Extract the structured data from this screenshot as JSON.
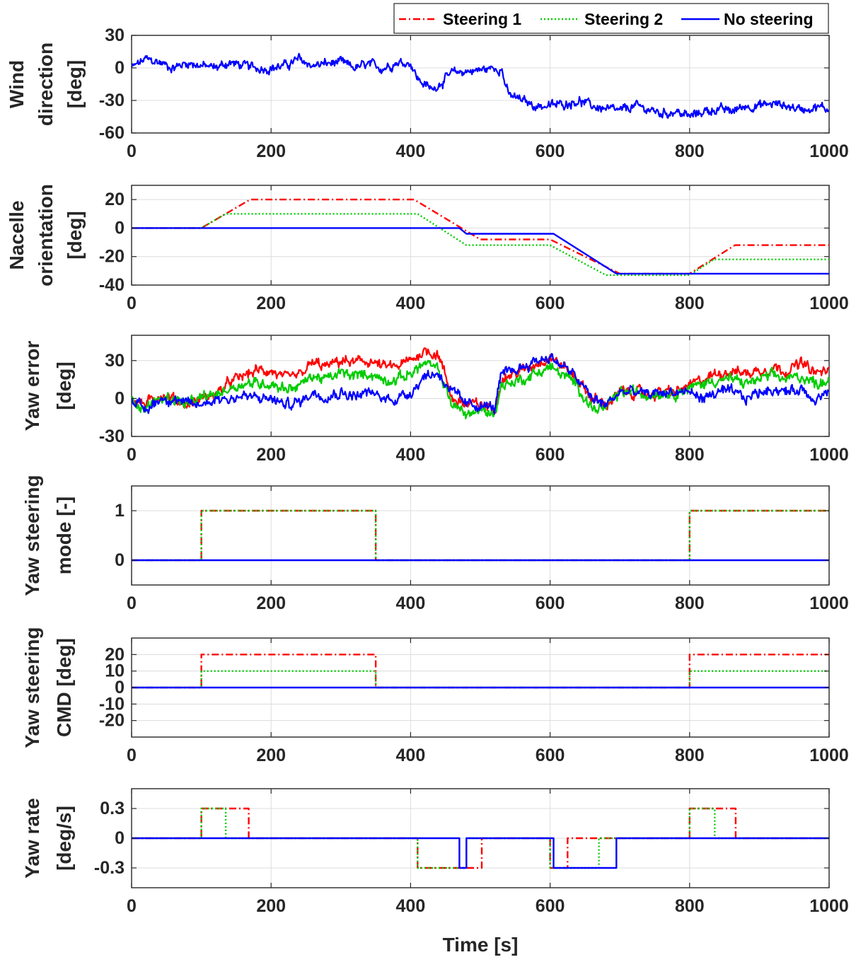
{
  "legend": {
    "items": [
      {
        "label": "Steering 1",
        "color": "#ff0000",
        "dash": "dashdot"
      },
      {
        "label": "Steering 2",
        "color": "#00cc00",
        "dash": "dotted"
      },
      {
        "label": "No steering",
        "color": "#0000ff",
        "dash": "solid"
      }
    ]
  },
  "xlabel": "Time [s]",
  "chart_data": [
    {
      "type": "line",
      "id": "wind",
      "ylabel": [
        "Wind",
        "direction",
        "[deg]"
      ],
      "xlim": [
        0,
        1000
      ],
      "ylim": [
        -60,
        30
      ],
      "xticks": [
        0,
        200,
        400,
        600,
        800,
        1000
      ],
      "yticks": [
        30,
        0,
        -30,
        -60
      ],
      "grid": true,
      "series": [
        {
          "name": "No steering",
          "color": "#0000ff",
          "dash": "solid",
          "noisy": true,
          "noise": 5,
          "x": [
            0,
            20,
            40,
            60,
            80,
            100,
            120,
            140,
            160,
            180,
            200,
            220,
            240,
            260,
            280,
            300,
            320,
            340,
            360,
            380,
            400,
            410,
            420,
            430,
            440,
            460,
            480,
            500,
            520,
            530,
            540,
            560,
            580,
            600,
            620,
            640,
            660,
            680,
            700,
            720,
            740,
            760,
            780,
            800,
            820,
            840,
            860,
            880,
            900,
            920,
            940,
            960,
            980,
            1000
          ],
          "y": [
            0,
            8,
            5,
            0,
            5,
            2,
            0,
            5,
            2,
            0,
            0,
            2,
            8,
            2,
            4,
            5,
            0,
            3,
            0,
            5,
            5,
            -10,
            -15,
            -20,
            -15,
            -5,
            -3,
            -2,
            0,
            0,
            -25,
            -30,
            -35,
            -35,
            -33,
            -30,
            -35,
            -38,
            -40,
            -35,
            -38,
            -42,
            -40,
            -45,
            -40,
            -38,
            -40,
            -35,
            -35,
            -33,
            -35,
            -38,
            -36,
            -38
          ]
        }
      ]
    },
    {
      "type": "line",
      "id": "nacelle",
      "ylabel": [
        "Nacelle",
        "orientation",
        "[deg]"
      ],
      "xlim": [
        0,
        1000
      ],
      "ylim": [
        -40,
        30
      ],
      "xticks": [
        0,
        200,
        400,
        600,
        800,
        1000
      ],
      "yticks": [
        20,
        0,
        -20,
        -40
      ],
      "grid": true,
      "series": [
        {
          "name": "Steering 1",
          "color": "#ff0000",
          "dash": "dashdot",
          "x": [
            0,
            100,
            170,
            405,
            500,
            600,
            700,
            800,
            865,
            1000
          ],
          "y": [
            0,
            0,
            20,
            20,
            -8,
            -8,
            -32,
            -32,
            -12,
            -12
          ]
        },
        {
          "name": "Steering 2",
          "color": "#00cc00",
          "dash": "dotted",
          "x": [
            0,
            100,
            135,
            410,
            480,
            600,
            680,
            800,
            835,
            1000
          ],
          "y": [
            0,
            0,
            10,
            10,
            -12,
            -12,
            -33,
            -33,
            -22,
            -22
          ]
        },
        {
          "name": "No steering",
          "color": "#0000ff",
          "dash": "solid",
          "x": [
            0,
            470,
            480,
            605,
            695,
            1000
          ],
          "y": [
            0,
            0,
            -4,
            -4,
            -32,
            -32
          ]
        }
      ]
    },
    {
      "type": "line",
      "id": "yawerr",
      "ylabel": [
        "Yaw error",
        "[deg]"
      ],
      "xlim": [
        0,
        1000
      ],
      "ylim": [
        -30,
        50
      ],
      "xticks": [
        0,
        200,
        400,
        600,
        800,
        1000
      ],
      "yticks": [
        30,
        0,
        -30
      ],
      "grid": true,
      "series": [
        {
          "name": "Steering 1",
          "color": "#ff0000",
          "dash": "solid",
          "noisy": true,
          "noise": 5,
          "x": [
            0,
            20,
            40,
            60,
            80,
            100,
            120,
            140,
            160,
            180,
            200,
            220,
            240,
            260,
            280,
            300,
            320,
            340,
            360,
            380,
            400,
            420,
            440,
            460,
            480,
            500,
            520,
            530,
            540,
            560,
            580,
            600,
            620,
            640,
            660,
            680,
            700,
            720,
            740,
            760,
            780,
            800,
            820,
            840,
            860,
            880,
            900,
            920,
            940,
            960,
            980,
            1000
          ],
          "y": [
            0,
            -5,
            3,
            0,
            -5,
            0,
            3,
            12,
            18,
            22,
            22,
            15,
            18,
            28,
            25,
            30,
            28,
            30,
            25,
            25,
            30,
            38,
            35,
            0,
            -5,
            -5,
            -8,
            15,
            18,
            22,
            28,
            33,
            25,
            15,
            0,
            -5,
            5,
            5,
            3,
            5,
            5,
            10,
            15,
            20,
            22,
            20,
            22,
            25,
            22,
            28,
            20,
            22
          ]
        },
        {
          "name": "Steering 2",
          "color": "#00cc00",
          "dash": "solid",
          "noisy": true,
          "noise": 5,
          "x": [
            0,
            20,
            40,
            60,
            80,
            100,
            120,
            140,
            160,
            180,
            200,
            220,
            240,
            260,
            280,
            300,
            320,
            340,
            360,
            380,
            400,
            420,
            440,
            460,
            480,
            500,
            520,
            530,
            540,
            560,
            580,
            600,
            620,
            640,
            660,
            680,
            700,
            720,
            740,
            760,
            780,
            800,
            820,
            840,
            860,
            880,
            900,
            920,
            940,
            960,
            980,
            1000
          ],
          "y": [
            0,
            -8,
            0,
            0,
            -5,
            0,
            3,
            8,
            12,
            12,
            12,
            8,
            10,
            18,
            15,
            20,
            18,
            20,
            15,
            15,
            20,
            28,
            22,
            -5,
            -12,
            -10,
            -12,
            10,
            12,
            15,
            20,
            25,
            18,
            10,
            -8,
            -8,
            5,
            5,
            3,
            5,
            5,
            8,
            12,
            15,
            15,
            12,
            15,
            18,
            15,
            18,
            12,
            15
          ]
        },
        {
          "name": "No steering",
          "color": "#0000ff",
          "dash": "solid",
          "noisy": true,
          "noise": 5,
          "x": [
            0,
            20,
            40,
            60,
            80,
            100,
            120,
            140,
            160,
            180,
            200,
            220,
            240,
            260,
            280,
            300,
            320,
            340,
            360,
            380,
            400,
            420,
            440,
            460,
            480,
            500,
            520,
            530,
            540,
            560,
            580,
            600,
            620,
            640,
            660,
            680,
            700,
            720,
            740,
            760,
            780,
            800,
            820,
            840,
            860,
            880,
            900,
            920,
            940,
            960,
            980,
            1000
          ],
          "y": [
            0,
            -10,
            0,
            0,
            -5,
            -5,
            0,
            0,
            2,
            0,
            0,
            -5,
            -3,
            5,
            2,
            5,
            2,
            5,
            0,
            0,
            5,
            18,
            20,
            5,
            -5,
            -5,
            -8,
            18,
            20,
            25,
            30,
            33,
            25,
            15,
            0,
            -5,
            5,
            5,
            3,
            5,
            5,
            5,
            0,
            5,
            5,
            0,
            5,
            8,
            5,
            8,
            0,
            5
          ]
        }
      ]
    },
    {
      "type": "line",
      "id": "mode",
      "ylabel": [
        "Yaw steering",
        "mode [-]"
      ],
      "xlim": [
        0,
        1000
      ],
      "ylim": [
        -0.5,
        1.5
      ],
      "xticks": [
        0,
        200,
        400,
        600,
        800,
        1000
      ],
      "yticks": [
        1,
        0
      ],
      "grid": true,
      "series": [
        {
          "name": "Steering 1",
          "color": "#ff0000",
          "dash": "dashdot",
          "x": [
            0,
            100,
            100,
            350,
            350,
            800,
            800,
            1000
          ],
          "y": [
            0,
            0,
            1,
            1,
            0,
            0,
            1,
            1
          ]
        },
        {
          "name": "Steering 2",
          "color": "#00cc00",
          "dash": "dotted",
          "x": [
            0,
            100,
            100,
            350,
            350,
            800,
            800,
            1000
          ],
          "y": [
            0,
            0,
            1,
            1,
            0,
            0,
            1,
            1
          ]
        },
        {
          "name": "No steering",
          "color": "#0000ff",
          "dash": "solid",
          "x": [
            0,
            1000
          ],
          "y": [
            0,
            0
          ]
        }
      ]
    },
    {
      "type": "line",
      "id": "cmd",
      "ylabel": [
        "Yaw steering",
        "CMD [deg]"
      ],
      "xlim": [
        0,
        1000
      ],
      "ylim": [
        -30,
        30
      ],
      "xticks": [
        0,
        200,
        400,
        600,
        800,
        1000
      ],
      "yticks": [
        20,
        10,
        0,
        -10,
        -20
      ],
      "grid": true,
      "series": [
        {
          "name": "Steering 1",
          "color": "#ff0000",
          "dash": "dashdot",
          "x": [
            0,
            100,
            100,
            350,
            350,
            800,
            800,
            1000
          ],
          "y": [
            0,
            0,
            20,
            20,
            0,
            0,
            20,
            20
          ]
        },
        {
          "name": "Steering 2",
          "color": "#00cc00",
          "dash": "dotted",
          "x": [
            0,
            100,
            100,
            350,
            350,
            800,
            800,
            1000
          ],
          "y": [
            0,
            0,
            10,
            10,
            0,
            0,
            10,
            10
          ]
        },
        {
          "name": "No steering",
          "color": "#0000ff",
          "dash": "solid",
          "x": [
            0,
            1000
          ],
          "y": [
            0,
            0
          ]
        }
      ]
    },
    {
      "type": "line",
      "id": "rate",
      "ylabel": [
        "Yaw rate",
        "[deg/s]"
      ],
      "xlim": [
        0,
        1000
      ],
      "ylim": [
        -0.5,
        0.5
      ],
      "xticks": [
        0,
        200,
        400,
        600,
        800,
        1000
      ],
      "yticks": [
        0.3,
        0,
        -0.3
      ],
      "grid": true,
      "series": [
        {
          "name": "Steering 1",
          "color": "#ff0000",
          "dash": "dashdot",
          "x": [
            0,
            100,
            100,
            168,
            168,
            410,
            410,
            502,
            502,
            600,
            600,
            625,
            625,
            700,
            700,
            800,
            800,
            866,
            866,
            1000
          ],
          "y": [
            0,
            0,
            0.3,
            0.3,
            0,
            0,
            -0.3,
            -0.3,
            0,
            0,
            -0.3,
            -0.3,
            0,
            0,
            0,
            0,
            0.3,
            0.3,
            0,
            0
          ]
        },
        {
          "name": "Steering 2",
          "color": "#00cc00",
          "dash": "dotted",
          "x": [
            0,
            100,
            100,
            135,
            135,
            410,
            410,
            480,
            480,
            600,
            600,
            670,
            670,
            700,
            700,
            800,
            800,
            836,
            836,
            1000
          ],
          "y": [
            0,
            0,
            0.3,
            0.3,
            0,
            0,
            -0.3,
            -0.3,
            0,
            0,
            -0.3,
            -0.3,
            0,
            0,
            0,
            0,
            0.3,
            0.3,
            0,
            0
          ]
        },
        {
          "name": "No steering",
          "color": "#0000ff",
          "dash": "solid",
          "x": [
            0,
            470,
            470,
            480,
            480,
            605,
            605,
            695,
            695,
            1000
          ],
          "y": [
            0,
            0,
            -0.3,
            -0.3,
            0,
            0,
            -0.3,
            -0.3,
            0,
            0
          ]
        }
      ]
    }
  ]
}
